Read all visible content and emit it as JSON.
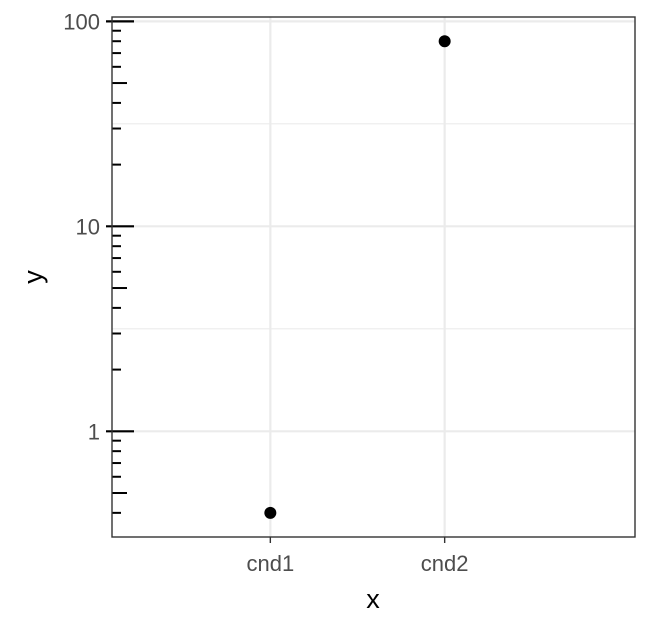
{
  "chart_data": {
    "type": "scatter",
    "title": "",
    "xlabel": "x",
    "ylabel": "y",
    "categories": [
      "cnd1",
      "cnd2"
    ],
    "series": [
      {
        "points": [
          {
            "x": "cnd1",
            "y": 0.4
          },
          {
            "x": "cnd2",
            "y": 80
          }
        ]
      }
    ],
    "y_scale": "log10",
    "ylim": [
      0.305,
      105
    ],
    "y_ticks": [
      1,
      10,
      100
    ],
    "y_tick_labels": [
      "1",
      "10",
      "100"
    ],
    "y_minor_ticks": [
      0.4,
      0.5,
      0.6,
      0.7,
      0.8,
      0.9,
      2,
      3,
      4,
      5,
      6,
      7,
      8,
      9,
      20,
      30,
      40,
      50,
      60,
      70,
      80,
      90
    ],
    "grid": true,
    "legend": "none",
    "colors": {
      "point": "#000000",
      "grid": "#ebebeb",
      "panel_border": "#333333",
      "tick_label": "#4d4d4d",
      "axis_title": "#000000",
      "background": "#ffffff"
    }
  }
}
